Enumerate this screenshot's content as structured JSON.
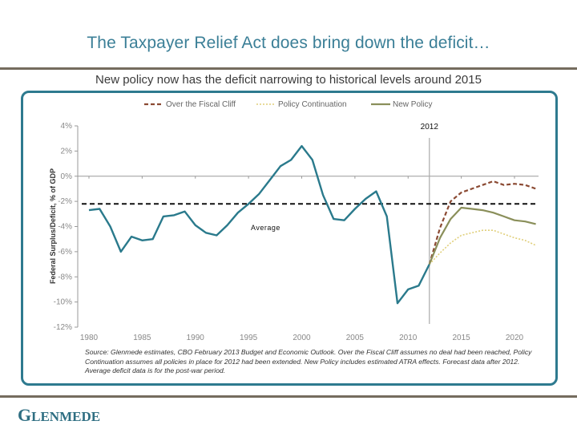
{
  "slide": {
    "title": "The Taxpayer Relief Act does bring down the deficit…",
    "subtitle": "New policy now has the deficit narrowing to historical levels around 2015",
    "logo_first": "G",
    "logo_rest": "LENMEDE",
    "source_note": "Source: Glenmede estimates, CBO February 2013 Budget and Economic Outlook. Over the Fiscal Cliff assumes no deal had been reached, Policy Continuation assumes all policies in place for 2012 had been extended. New Policy includes estimated ATRA effects. Forecast data after 2012. Average deficit data is for the post-war period.",
    "colors": {
      "title": "#3b7f97",
      "rule": "#756c5e",
      "frame": "#2e7a8f",
      "history": "#2a7a8c",
      "fiscal_cliff": "#8b4a33",
      "policy_continuation": "#e0cf7a",
      "new_policy": "#8a8f5a",
      "average": "#111111"
    }
  },
  "chart_data": {
    "type": "line",
    "title": "",
    "xlabel": "",
    "ylabel": "Federal Surplus/Deficit, % of GDP",
    "xlim": [
      1980,
      2022
    ],
    "ylim": [
      -12,
      4
    ],
    "x_ticks": [
      1980,
      1985,
      1990,
      1995,
      2000,
      2005,
      2010,
      2015,
      2020
    ],
    "x_tick_labels": [
      "1980",
      "1985",
      "1990",
      "1995",
      "2000",
      "2005",
      "2010",
      "2015",
      "2020"
    ],
    "y_ticks": [
      4,
      2,
      0,
      -2,
      -4,
      -6,
      -8,
      -10,
      -12
    ],
    "y_tick_labels": [
      "4%",
      "2%",
      "0%",
      "-2%",
      "-4%",
      "-6%",
      "-8%",
      "-10%",
      "-12%"
    ],
    "legend": {
      "placement": "top",
      "entries": [
        "Over the Fiscal Cliff",
        "Policy Continuation",
        "New Policy"
      ]
    },
    "annotations": {
      "vertical_marker_label": "2012",
      "vertical_marker_x": 2012,
      "average_label": "Average",
      "average_value": -2.2
    },
    "series": [
      {
        "name": "Historical",
        "style": "solid",
        "x": [
          1980,
          1981,
          1982,
          1983,
          1984,
          1985,
          1986,
          1987,
          1988,
          1989,
          1990,
          1991,
          1992,
          1993,
          1994,
          1995,
          1996,
          1997,
          1998,
          1999,
          2000,
          2001,
          2002,
          2003,
          2004,
          2005,
          2006,
          2007,
          2008,
          2009,
          2010,
          2011,
          2012
        ],
        "values": [
          -2.7,
          -2.6,
          -4.0,
          -6.0,
          -4.8,
          -5.1,
          -5.0,
          -3.2,
          -3.1,
          -2.8,
          -3.9,
          -4.5,
          -4.7,
          -3.9,
          -2.9,
          -2.2,
          -1.4,
          -0.3,
          0.8,
          1.3,
          2.4,
          1.3,
          -1.5,
          -3.4,
          -3.5,
          -2.6,
          -1.8,
          -1.2,
          -3.2,
          -10.1,
          -9.0,
          -8.7,
          -7.0
        ]
      },
      {
        "name": "Over the Fiscal Cliff",
        "style": "dashed",
        "x": [
          2012,
          2013,
          2014,
          2015,
          2016,
          2017,
          2018,
          2019,
          2020,
          2021,
          2022
        ],
        "values": [
          -7.0,
          -4.1,
          -2.0,
          -1.3,
          -1.0,
          -0.7,
          -0.4,
          -0.7,
          -0.6,
          -0.7,
          -1.0
        ]
      },
      {
        "name": "Policy Continuation",
        "style": "dotted",
        "x": [
          2012,
          2013,
          2014,
          2015,
          2016,
          2017,
          2018,
          2019,
          2020,
          2021,
          2022
        ],
        "values": [
          -7.0,
          -6.1,
          -5.3,
          -4.7,
          -4.5,
          -4.3,
          -4.3,
          -4.6,
          -4.9,
          -5.1,
          -5.5
        ]
      },
      {
        "name": "New Policy",
        "style": "solid",
        "x": [
          2012,
          2013,
          2014,
          2015,
          2016,
          2017,
          2018,
          2019,
          2020,
          2021,
          2022
        ],
        "values": [
          -7.0,
          -4.9,
          -3.4,
          -2.5,
          -2.6,
          -2.7,
          -2.9,
          -3.2,
          -3.5,
          -3.6,
          -3.8
        ]
      }
    ]
  }
}
